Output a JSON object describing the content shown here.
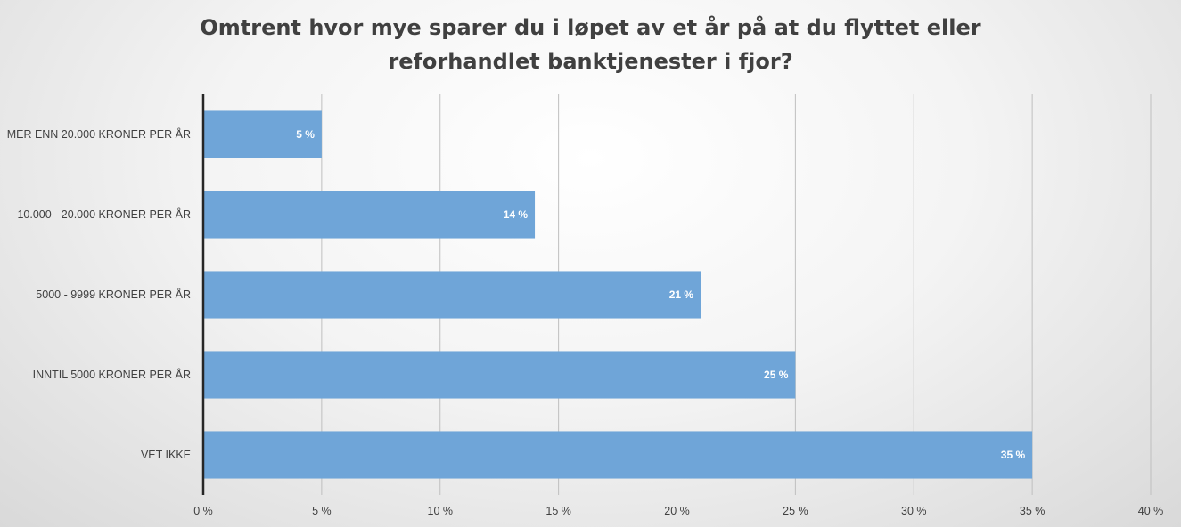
{
  "chart_data": {
    "type": "bar",
    "orientation": "horizontal",
    "title": "Omtrent hvor mye sparer du i løpet av et år på at du flyttet eller reforhandlet banktjenester i fjor?",
    "categories": [
      "MER ENN 20.000 KRONER PER ÅR",
      "10.000 - 20.000 KRONER PER ÅR",
      "5000 - 9999 KRONER PER ÅR",
      "INNTIL 5000 KRONER PER ÅR",
      "VET IKKE"
    ],
    "values": [
      5,
      14,
      21,
      25,
      35
    ],
    "data_labels": [
      "5 %",
      "14 %",
      "21 %",
      "25 %",
      "35 %"
    ],
    "xticks": [
      0,
      5,
      10,
      15,
      20,
      25,
      30,
      35,
      40
    ],
    "xtick_labels": [
      "0 %",
      "5 %",
      "10 %",
      "15 %",
      "20 %",
      "25 %",
      "30 %",
      "35 %",
      "40 %"
    ],
    "xlim": [
      0,
      40
    ],
    "xlabel": "",
    "ylabel": "",
    "grid": true,
    "legend": "none",
    "colors": {
      "bar": "#6fa5d8",
      "grid": "#bfbfbf",
      "axis": "#262626",
      "text": "#404040",
      "data_label": "#ffffff"
    }
  }
}
